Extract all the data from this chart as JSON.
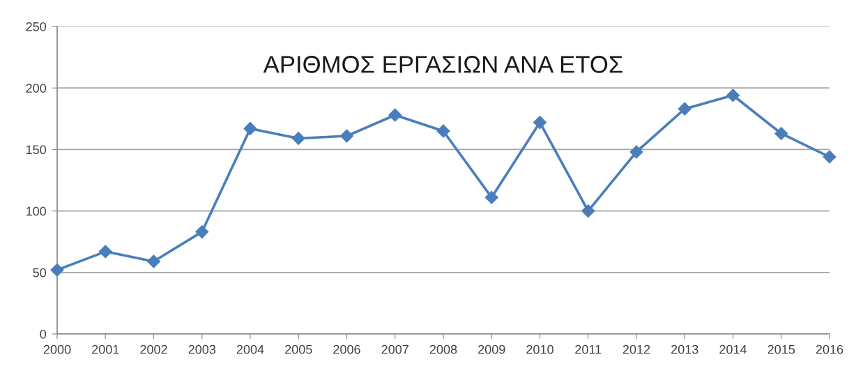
{
  "chart_data": {
    "type": "line",
    "title": "ΑΡΙΘΜΟΣ ΕΡΓΑΣΙΩΝ ΑΝΑ ΕΤΟΣ",
    "categories": [
      "2000",
      "2001",
      "2002",
      "2003",
      "2004",
      "2005",
      "2006",
      "2007",
      "2008",
      "2009",
      "2010",
      "2011",
      "2012",
      "2013",
      "2014",
      "2015",
      "2016"
    ],
    "series": [
      {
        "color": "#4a7ebb",
        "values": [
          52,
          67,
          59,
          83,
          167,
          159,
          161,
          178,
          165,
          111,
          172,
          100,
          148,
          183,
          194,
          163,
          144
        ]
      }
    ],
    "ylim": [
      0,
      250
    ],
    "yticks": [
      0,
      50,
      100,
      150,
      200,
      250
    ],
    "grid": "y",
    "marker": "diamond",
    "line_style": "solid"
  }
}
